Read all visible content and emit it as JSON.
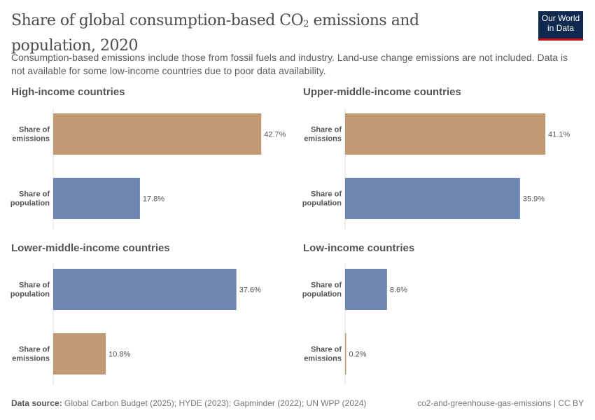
{
  "header": {
    "title": "Share of global consumption-based CO",
    "title_sub": "2",
    "title_rest": " emissions and population, 2020",
    "subtitle": "Consumption-based emissions include those from fossil fuels and industry. Land-use change emissions are not included. Data is not available for some low-income countries due to poor data availability.",
    "logo": [
      "Our World",
      "in Data"
    ]
  },
  "colors": {
    "emissions": "#bf9a72",
    "population": "#6d87b0"
  },
  "chart_data": [
    {
      "type": "bar",
      "title": "High-income countries",
      "categories": [
        "Share of emissions",
        "Share of population"
      ],
      "values": [
        42.7,
        17.8
      ],
      "unit": "%",
      "xlim": [
        0,
        42.7
      ]
    },
    {
      "type": "bar",
      "title": "Upper-middle-income countries",
      "categories": [
        "Share of emissions",
        "Share of population"
      ],
      "values": [
        41.1,
        35.9
      ],
      "unit": "%",
      "xlim": [
        0,
        42.7
      ]
    },
    {
      "type": "bar",
      "title": "Lower-middle-income countries",
      "categories": [
        "Share of population",
        "Share of emissions"
      ],
      "values": [
        37.6,
        10.8
      ],
      "unit": "%",
      "xlim": [
        0,
        42.7
      ]
    },
    {
      "type": "bar",
      "title": "Low-income countries",
      "categories": [
        "Share of population",
        "Share of emissions"
      ],
      "values": [
        8.6,
        0.2
      ],
      "unit": "%",
      "xlim": [
        0,
        42.7
      ]
    }
  ],
  "footer": {
    "source_label": "Data source:",
    "source": " Global Carbon Budget (2025); HYDE (2023); Gapminder (2022); UN WPP (2024)",
    "right": "co2-and-greenhouse-gas-emissions | CC BY"
  }
}
